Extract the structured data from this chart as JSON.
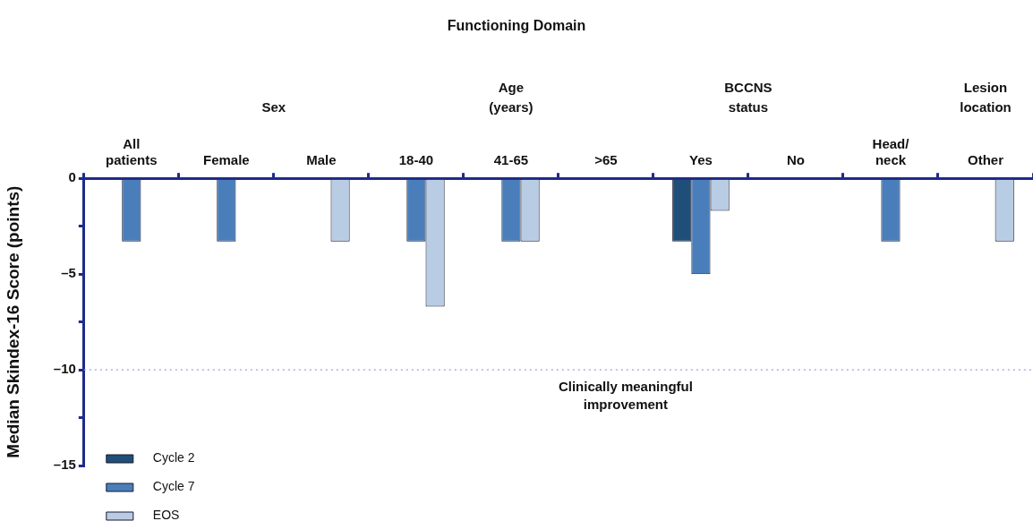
{
  "chart_data": {
    "type": "bar",
    "title": "Functioning Domain",
    "ylabel": "Median Skindex-16 Score (points)",
    "categories": [
      "All patients",
      "Female",
      "Male",
      "18-40",
      "41-65",
      ">65",
      "Yes",
      "No",
      "Head/neck",
      "Other"
    ],
    "series": [
      {
        "name": "Cycle 2",
        "color": "#1f4e79",
        "values": [
          null,
          null,
          null,
          null,
          null,
          null,
          -3.3,
          null,
          null,
          null
        ]
      },
      {
        "name": "Cycle 7",
        "color": "#4a7ebb",
        "values": [
          -3.3,
          -3.3,
          null,
          -3.3,
          -3.3,
          null,
          -5,
          null,
          -3.3,
          null
        ]
      },
      {
        "name": "EOS",
        "color": "#b8cce4",
        "values": [
          null,
          null,
          -3.3,
          -6.7,
          -3.3,
          null,
          -1.7,
          null,
          null,
          -3.3
        ]
      }
    ],
    "ylim": [
      -15,
      0
    ],
    "yticks": [
      0,
      {
        "value": -2.5,
        "label": null
      },
      {
        "value": -5,
        "label": "–5"
      },
      {
        "value": -7.5,
        "label": null
      },
      {
        "value": -10,
        "label": "–10"
      },
      {
        "value": -12.5,
        "label": null
      },
      {
        "value": -15,
        "label": "–15"
      }
    ],
    "ref_lines": [
      {
        "axis": "y",
        "value": -10,
        "label": "Clinically meaningful improvement",
        "color": "#9aa0d8",
        "line_style": "dotted"
      }
    ],
    "annotations": [
      "Sex",
      "Age (years)",
      "BCCNS status",
      "Lesion location"
    ],
    "grid": false,
    "legend": "bottom left"
  }
}
